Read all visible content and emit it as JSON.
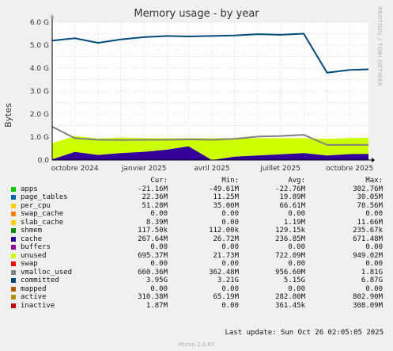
{
  "title": "Memory usage - by year",
  "side_text": "RRDTOOL / TOBI OETIKER",
  "footer": "Munin 2.0.67",
  "last_update": "Last update: Sun Oct 26 02:05:05 2025",
  "legend_header": {
    "cur": "Cur:",
    "min": "Min:",
    "avg": "Avg:",
    "max": "Max:"
  },
  "legend": [
    {
      "name": "apps",
      "color": "#00cc00",
      "cur": "-21.16M",
      "min": "-49.61M",
      "avg": "-22.76M",
      "max": "302.76M"
    },
    {
      "name": "page_tables",
      "color": "#0066b3",
      "cur": "22.36M",
      "min": "11.25M",
      "avg": "19.89M",
      "max": "30.05M"
    },
    {
      "name": "per_cpu",
      "color": "#ffcc00",
      "cur": "51.28M",
      "min": "35.00M",
      "avg": "66.61M",
      "max": "78.56M"
    },
    {
      "name": "swap_cache",
      "color": "#ff8000",
      "cur": "0.00",
      "min": "0.00",
      "avg": "0.00",
      "max": "0.00"
    },
    {
      "name": "slab_cache",
      "color": "#ffcc00",
      "cur": "8.39M",
      "min": "0.00",
      "avg": "1.19M",
      "max": "11.66M"
    },
    {
      "name": "shmem",
      "color": "#008f00",
      "cur": "117.50k",
      "min": "112.00k",
      "avg": "129.15k",
      "max": "235.67k"
    },
    {
      "name": "cache",
      "color": "#330099",
      "cur": "267.64M",
      "min": "26.72M",
      "avg": "236.85M",
      "max": "671.48M"
    },
    {
      "name": "buffers",
      "color": "#990099",
      "cur": "0.00",
      "min": "0.00",
      "avg": "0.00",
      "max": "0.00"
    },
    {
      "name": "unused",
      "color": "#ccff00",
      "cur": "695.37M",
      "min": "21.73M",
      "avg": "722.09M",
      "max": "949.02M"
    },
    {
      "name": "swap",
      "color": "#ff0000",
      "cur": "0.00",
      "min": "0.00",
      "avg": "0.00",
      "max": "0.00"
    },
    {
      "name": "vmalloc_used",
      "color": "#808080",
      "cur": "660.36M",
      "min": "362.48M",
      "avg": "956.60M",
      "max": "1.81G"
    },
    {
      "name": "committed",
      "color": "#004b7c",
      "cur": "3.95G",
      "min": "3.21G",
      "avg": "5.15G",
      "max": "6.87G"
    },
    {
      "name": "mapped",
      "color": "#b35a00",
      "cur": "0.00",
      "min": "0.00",
      "avg": "0.00",
      "max": "0.00"
    },
    {
      "name": "active",
      "color": "#b38f00",
      "cur": "310.38M",
      "min": "65.19M",
      "avg": "282.80M",
      "max": "802.90M"
    },
    {
      "name": "inactive",
      "color": "#cc0000",
      "cur": "1.87M",
      "min": "0.00",
      "avg": "361.45k",
      "max": "308.09M"
    }
  ],
  "chart_data": {
    "type": "area",
    "title": "Memory usage - by year",
    "ylabel": "Bytes",
    "ylim": [
      0,
      6.0
    ],
    "y_unit": "G",
    "yticks": [
      "0.0",
      "1.0 G",
      "2.0 G",
      "3.0 G",
      "4.0 G",
      "5.0 G",
      "6.0 G"
    ],
    "xticks": [
      "octobre 2024",
      "janvier 2025",
      "avril 2025",
      "juillet 2025",
      "octobre 2025"
    ],
    "grid": true,
    "x": [
      "2024-09-01",
      "2024-10-01",
      "2024-11-01",
      "2024-12-01",
      "2025-01-01",
      "2025-02-01",
      "2025-03-01",
      "2025-04-01",
      "2025-05-01",
      "2025-06-01",
      "2025-07-01",
      "2025-08-01",
      "2025-09-01",
      "2025-10-01",
      "2025-10-26"
    ],
    "series": [
      {
        "name": "cache",
        "values": [
          0.03,
          0.35,
          0.22,
          0.3,
          0.36,
          0.45,
          0.6,
          0.0,
          0.15,
          0.2,
          0.25,
          0.3,
          0.2,
          0.26,
          0.27
        ]
      },
      {
        "name": "unused",
        "values": [
          0.7,
          0.7,
          0.72,
          0.68,
          0.6,
          0.5,
          0.35,
          0.95,
          0.8,
          0.75,
          0.7,
          0.65,
          0.72,
          0.7,
          0.7
        ]
      },
      {
        "name": "vmalloc_used",
        "values": [
          1.45,
          0.95,
          0.88,
          0.87,
          0.88,
          0.88,
          0.9,
          0.88,
          0.92,
          1.02,
          1.05,
          1.1,
          0.66,
          0.66,
          0.66
        ]
      },
      {
        "name": "committed",
        "values": [
          5.2,
          5.3,
          5.1,
          5.25,
          5.35,
          5.4,
          5.38,
          5.4,
          5.42,
          5.48,
          5.45,
          5.5,
          3.8,
          3.92,
          3.95
        ]
      }
    ]
  }
}
